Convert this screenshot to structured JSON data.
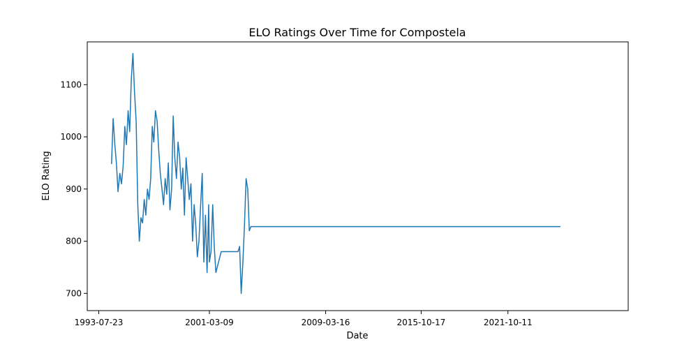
{
  "chart_data": {
    "type": "line",
    "title": "ELO Ratings Over Time for Compostela",
    "xlabel": "Date",
    "ylabel": "ELO Rating",
    "x_is_date": true,
    "xlim": [
      "1992-10-06",
      "2030-01-26"
    ],
    "ylim": [
      667,
      1182
    ],
    "x_ticks": [
      "1993-07-23",
      "2001-03-09",
      "2009-03-16",
      "2015-10-17",
      "2021-10-11"
    ],
    "y_ticks": [
      700,
      800,
      900,
      1000,
      1100
    ],
    "grid": false,
    "legend": "none",
    "series": [
      {
        "color": "#1f77b4",
        "x": [
          "1994-06-10",
          "1994-07-20",
          "1994-09-01",
          "1994-10-10",
          "1994-11-20",
          "1995-01-05",
          "1995-02-15",
          "1995-03-30",
          "1995-05-10",
          "1995-06-20",
          "1995-08-01",
          "1995-09-10",
          "1995-10-20",
          "1995-12-01",
          "1996-01-10",
          "1996-02-20",
          "1996-04-01",
          "1996-05-10",
          "1996-06-20",
          "1996-07-30",
          "1996-09-10",
          "1996-10-20",
          "1996-12-01",
          "1997-01-10",
          "1997-02-20",
          "1997-04-01",
          "1997-05-10",
          "1997-06-20",
          "1997-08-01",
          "1997-09-10",
          "1997-10-20",
          "1997-12-01",
          "1998-01-10",
          "1998-02-20",
          "1998-04-01",
          "1998-05-10",
          "1998-06-20",
          "1998-08-01",
          "1998-09-10",
          "1998-10-20",
          "1998-12-01",
          "1999-01-10",
          "1999-02-20",
          "1999-04-01",
          "1999-05-10",
          "1999-06-20",
          "1999-08-01",
          "1999-09-10",
          "1999-10-20",
          "1999-12-01",
          "2000-01-10",
          "2000-02-20",
          "2000-04-01",
          "2000-05-10",
          "2000-06-20",
          "2000-08-01",
          "2000-09-10",
          "2000-10-20",
          "2000-12-01",
          "2001-01-10",
          "2001-02-20",
          "2001-03-09",
          "2001-04-20",
          "2001-06-01",
          "2001-07-10",
          "2001-08-20",
          "2002-01-01",
          "2002-06-01",
          "2003-01-01",
          "2003-03-01",
          "2003-04-10",
          "2003-05-20",
          "2003-07-01",
          "2003-08-10",
          "2003-09-20",
          "2003-11-01",
          "2003-12-10",
          "2004-01-20",
          "2004-03-01",
          "2004-04-10",
          "2025-05-25"
        ],
        "values": [
          948,
          1035,
          985,
          950,
          895,
          930,
          910,
          945,
          1020,
          985,
          1050,
          1010,
          1110,
          1160,
          1085,
          1030,
          870,
          800,
          845,
          835,
          880,
          850,
          900,
          880,
          920,
          1020,
          990,
          1050,
          1030,
          975,
          930,
          900,
          870,
          920,
          890,
          950,
          860,
          900,
          1040,
          960,
          920,
          990,
          960,
          900,
          940,
          850,
          960,
          920,
          880,
          910,
          800,
          870,
          830,
          770,
          800,
          870,
          930,
          760,
          850,
          740,
          870,
          760,
          780,
          870,
          790,
          740,
          780,
          780,
          780,
          780,
          790,
          700,
          760,
          830,
          920,
          900,
          820,
          828,
          828,
          828,
          828
        ]
      }
    ]
  }
}
